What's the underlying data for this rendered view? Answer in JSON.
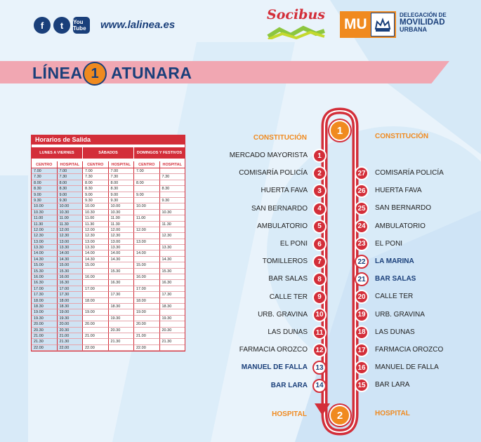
{
  "header": {
    "social": [
      "f",
      "t",
      "You Tube"
    ],
    "website": "www.lalinea.es",
    "socibus": "Socibus",
    "mu": "MU",
    "delegacion": [
      "DELEGACIÓN DE",
      "MOVILIDAD",
      "URBANA"
    ]
  },
  "title": {
    "prefix": "LÍNEA",
    "number": "1",
    "name": "ATUNARA"
  },
  "timetable": {
    "title": "Horarios de Salida",
    "groups": [
      "LUNES A VIERNES",
      "SÁBADOS",
      "DOMINGOS Y FESTIVOS"
    ],
    "subheaders": [
      "CENTRO",
      "HOSPITAL",
      "CENTRO",
      "HOSPITAL",
      "CENTRO",
      "HOSPITAL"
    ],
    "rows": [
      [
        "7.00",
        "7.00",
        "7.00",
        "7.00",
        "7.00",
        ""
      ],
      [
        "7.30",
        "7.30",
        "7.30",
        "7.30",
        "",
        "7.30"
      ],
      [
        "8.00",
        "8.00",
        "8.00",
        "8.00",
        "8.00",
        ""
      ],
      [
        "8.30",
        "8.30",
        "8.30",
        "8.30",
        "",
        "8.30"
      ],
      [
        "9.00",
        "9.00",
        "9.00",
        "9.00",
        "9.00",
        ""
      ],
      [
        "9.30",
        "9.30",
        "9.30",
        "9.30",
        "",
        "9.30"
      ],
      [
        "10.00",
        "10.00",
        "10.00",
        "10.00",
        "10.00",
        ""
      ],
      [
        "10.30",
        "10.30",
        "10.30",
        "10.30",
        "",
        "10.30"
      ],
      [
        "11.00",
        "11.00",
        "11.00",
        "11.00",
        "11.00",
        ""
      ],
      [
        "11.30",
        "11.30",
        "11.30",
        "11.30",
        "",
        "11.30"
      ],
      [
        "12.00",
        "12.00",
        "12.00",
        "12.00",
        "12.00",
        ""
      ],
      [
        "12.30",
        "12.30",
        "12.30",
        "12.30",
        "",
        "12.30"
      ],
      [
        "13.00",
        "13.00",
        "13.00",
        "13.00",
        "13.00",
        ""
      ],
      [
        "13.30",
        "13.30",
        "13.30",
        "13.30",
        "",
        "13.30"
      ],
      [
        "14.00",
        "14.00",
        "14.00",
        "14.00",
        "14.00",
        ""
      ],
      [
        "14.30",
        "14.30",
        "14.30",
        "14.30",
        "",
        "14.30"
      ],
      [
        "15.00",
        "15.00",
        "15.00",
        "",
        "15.00",
        ""
      ],
      [
        "15.30",
        "15.30",
        "",
        "15.30",
        "",
        "15.30"
      ],
      [
        "16.00",
        "16.00",
        "16.00",
        "",
        "16.00",
        ""
      ],
      [
        "16.30",
        "16.30",
        "",
        "16.30",
        "",
        "16.30"
      ],
      [
        "17.00",
        "17.00",
        "17.00",
        "",
        "17.00",
        ""
      ],
      [
        "17.30",
        "17.30",
        "",
        "17.30",
        "",
        "17.30"
      ],
      [
        "18.00",
        "18.00",
        "18.00",
        "",
        "18.00",
        ""
      ],
      [
        "18.30",
        "18.30",
        "",
        "18.30",
        "",
        "18.30"
      ],
      [
        "19.00",
        "19.00",
        "19.00",
        "",
        "19.00",
        ""
      ],
      [
        "19.30",
        "19.30",
        "",
        "19.30",
        "",
        "19.30"
      ],
      [
        "20.00",
        "20.00",
        "20.00",
        "",
        "20.00",
        ""
      ],
      [
        "20.30",
        "20.30",
        "",
        "20.30",
        "",
        "20.30"
      ],
      [
        "21.00",
        "21.00",
        "21.00",
        "",
        "21.00",
        ""
      ],
      [
        "21.30",
        "21.30",
        "",
        "21.30",
        "",
        "21.30"
      ],
      [
        "22.00",
        "22.00",
        "22.00",
        "",
        "22.00",
        ""
      ]
    ]
  },
  "route": {
    "start_label": "CONSTITUCIÓN",
    "start_number": "1",
    "end_label": "HOSPITAL",
    "end_number": "2",
    "outbound": [
      {
        "num": "1",
        "name": "MERCADO MAYORISTA"
      },
      {
        "num": "2",
        "name": "COMISARÍA POLICÍA"
      },
      {
        "num": "3",
        "name": "HUERTA FAVA"
      },
      {
        "num": "4",
        "name": "SAN BERNARDO"
      },
      {
        "num": "5",
        "name": "AMBULATORIO"
      },
      {
        "num": "6",
        "name": "EL PONI"
      },
      {
        "num": "7",
        "name": "TOMILLEROS"
      },
      {
        "num": "8",
        "name": "BAR SALAS"
      },
      {
        "num": "9",
        "name": "CALLE TER"
      },
      {
        "num": "10",
        "name": "URB. GRAVINA"
      },
      {
        "num": "11",
        "name": "LAS DUNAS"
      },
      {
        "num": "12",
        "name": "FARMACIA OROZCO"
      },
      {
        "num": "13",
        "name": "MANUEL DE FALLA",
        "highlight": true
      },
      {
        "num": "14",
        "name": "BAR LARA",
        "highlight": true
      }
    ],
    "inbound": [
      {
        "num": "27",
        "name": "COMISARÍA POLICÍA"
      },
      {
        "num": "26",
        "name": "HUERTA FAVA"
      },
      {
        "num": "25",
        "name": "SAN BERNARDO"
      },
      {
        "num": "24",
        "name": "AMBULATORIO"
      },
      {
        "num": "23",
        "name": "EL PONI"
      },
      {
        "num": "22",
        "name": "LA MARINA",
        "highlight": true
      },
      {
        "num": "21",
        "name": "BAR SALAS",
        "highlight": true
      },
      {
        "num": "20",
        "name": "CALLE TER"
      },
      {
        "num": "19",
        "name": "URB. GRAVINA"
      },
      {
        "num": "18",
        "name": "LAS DUNAS"
      },
      {
        "num": "17",
        "name": "FARMACIA OROZCO"
      },
      {
        "num": "16",
        "name": "MANUEL DE FALLA"
      },
      {
        "num": "15",
        "name": "BAR LARA"
      }
    ]
  },
  "colors": {
    "accent": "#d32e39",
    "orange": "#f08a1f",
    "navy": "#1a3f7a",
    "background": "#e9f3fb"
  }
}
